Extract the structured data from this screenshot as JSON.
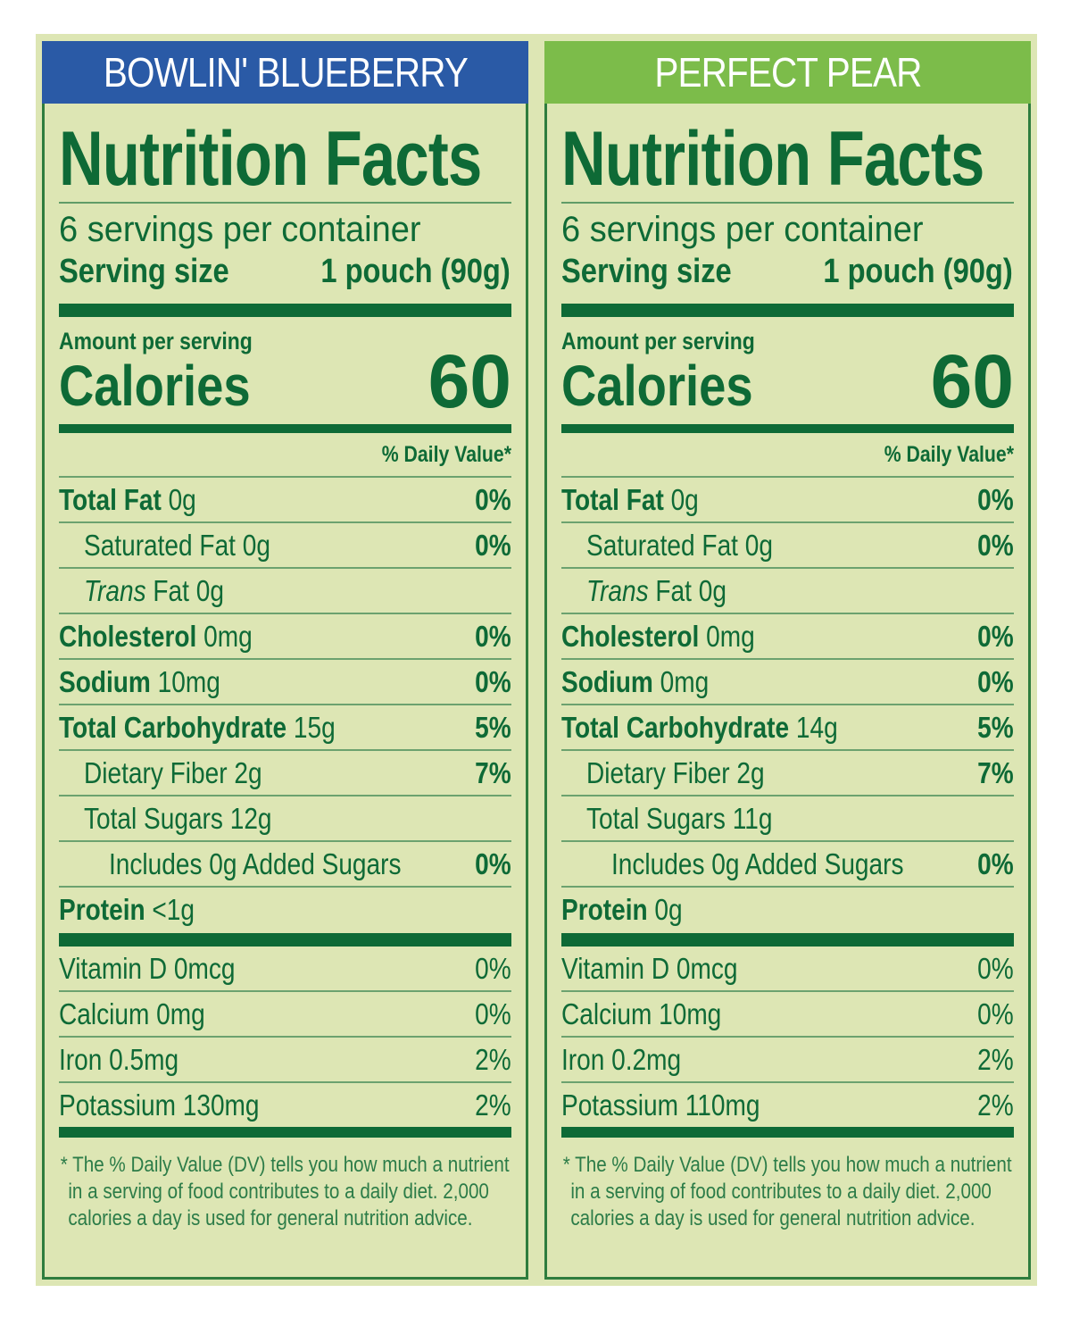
{
  "colors": {
    "background": "#dde6b4",
    "text": "#0e6a36",
    "blueberry_header": "#2a5aa6",
    "pear_header": "#7cbc4a"
  },
  "labels": [
    {
      "flavor": "BOWLIN' BLUEBERRY",
      "header_color": "#2a5aa6",
      "title": "Nutrition Facts",
      "servings": "6 servings per container",
      "serving_size_label": "Serving size",
      "serving_size_value": "1 pouch (90g)",
      "amount_per_serving": "Amount per serving",
      "calories_label": "Calories",
      "calories": "60",
      "dv_header": "% Daily Value*",
      "nutrients": [
        {
          "bold": "Total Fat",
          "amount": "0g",
          "dv": "0%",
          "indent": 0
        },
        {
          "label": "Saturated Fat",
          "amount": "0g",
          "dv": "0%",
          "indent": 1
        },
        {
          "italic": "Trans",
          "label": "Fat",
          "amount": "0g",
          "dv": "",
          "indent": 1
        },
        {
          "bold": "Cholesterol",
          "amount": "0mg",
          "dv": "0%",
          "indent": 0
        },
        {
          "bold": "Sodium",
          "amount": "10mg",
          "dv": "0%",
          "indent": 0
        },
        {
          "bold": "Total Carbohydrate",
          "amount": "15g",
          "dv": "5%",
          "indent": 0
        },
        {
          "label": "Dietary Fiber",
          "amount": "2g",
          "dv": "7%",
          "indent": 1
        },
        {
          "label": "Total Sugars",
          "amount": "12g",
          "dv": "",
          "indent": 1
        },
        {
          "label": "Includes 0g Added Sugars",
          "amount": "",
          "dv": "0%",
          "indent": 2
        },
        {
          "bold": "Protein",
          "amount": "<1g",
          "dv": "",
          "indent": 0
        }
      ],
      "vitamins": [
        {
          "label": "Vitamin D",
          "amount": "0mcg",
          "dv": "0%"
        },
        {
          "label": "Calcium",
          "amount": "0mg",
          "dv": "0%"
        },
        {
          "label": "Iron",
          "amount": "0.5mg",
          "dv": "2%"
        },
        {
          "label": "Potassium",
          "amount": "130mg",
          "dv": "2%"
        }
      ],
      "footnote": "* The % Daily Value (DV) tells you how much a nutrient in a serving of food contributes to a daily diet. 2,000 calories a day is used for general nutrition advice."
    },
    {
      "flavor": "PERFECT PEAR",
      "header_color": "#7cbc4a",
      "title": "Nutrition Facts",
      "servings": "6 servings per container",
      "serving_size_label": "Serving size",
      "serving_size_value": "1 pouch (90g)",
      "amount_per_serving": "Amount per serving",
      "calories_label": "Calories",
      "calories": "60",
      "dv_header": "% Daily Value*",
      "nutrients": [
        {
          "bold": "Total Fat",
          "amount": "0g",
          "dv": "0%",
          "indent": 0
        },
        {
          "label": "Saturated Fat",
          "amount": "0g",
          "dv": "0%",
          "indent": 1
        },
        {
          "italic": "Trans",
          "label": "Fat",
          "amount": "0g",
          "dv": "",
          "indent": 1
        },
        {
          "bold": "Cholesterol",
          "amount": "0mg",
          "dv": "0%",
          "indent": 0
        },
        {
          "bold": "Sodium",
          "amount": "0mg",
          "dv": "0%",
          "indent": 0
        },
        {
          "bold": "Total Carbohydrate",
          "amount": "14g",
          "dv": "5%",
          "indent": 0
        },
        {
          "label": "Dietary Fiber",
          "amount": "2g",
          "dv": "7%",
          "indent": 1
        },
        {
          "label": "Total Sugars",
          "amount": "11g",
          "dv": "",
          "indent": 1
        },
        {
          "label": "Includes 0g Added Sugars",
          "amount": "",
          "dv": "0%",
          "indent": 2
        },
        {
          "bold": "Protein",
          "amount": "0g",
          "dv": "",
          "indent": 0
        }
      ],
      "vitamins": [
        {
          "label": "Vitamin D",
          "amount": "0mcg",
          "dv": "0%"
        },
        {
          "label": "Calcium",
          "amount": "10mg",
          "dv": "0%"
        },
        {
          "label": "Iron",
          "amount": "0.2mg",
          "dv": "2%"
        },
        {
          "label": "Potassium",
          "amount": "110mg",
          "dv": "2%"
        }
      ],
      "footnote": "* The % Daily Value (DV) tells you how much a nutrient in a serving of food contributes to a daily diet. 2,000 calories a day is used for general nutrition advice."
    }
  ]
}
